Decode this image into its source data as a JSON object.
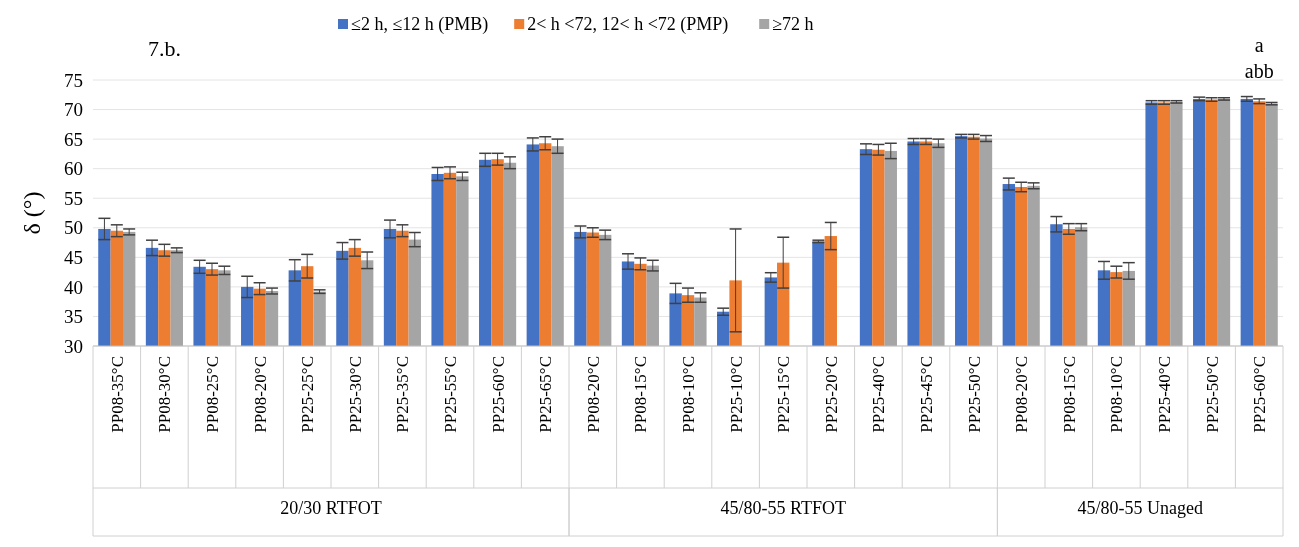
{
  "chart_data": {
    "type": "bar",
    "title": "7.b.",
    "ylabel": "δ (°)",
    "categories": [
      "PP08-35°C",
      "PP08-30°C",
      "PP08-25°C",
      "PP08-20°C",
      "PP25-25°C",
      "PP25-30°C",
      "PP25-35°C",
      "PP25-55°C",
      "PP25-60°C",
      "PP25-65°C",
      "PP08-20°C",
      "PP08-15°C",
      "PP08-10°C",
      "PP25-10°C",
      "PP25-15°C",
      "PP25-20°C",
      "PP25-40°C",
      "PP25-45°C",
      "PP25-50°C",
      "PP08-20°C",
      "PP08-15°C",
      "PP08-10°C",
      "PP25-40°C",
      "PP25-50°C",
      "PP25-60°C"
    ],
    "series": [
      {
        "name": "≤2 h, ≤12 h (PMB)",
        "color": "#4472c4",
        "values": [
          49.8,
          46.6,
          43.4,
          40,
          42.8,
          46.1,
          49.8,
          59.1,
          61.5,
          64.1,
          49.3,
          44.3,
          38.9,
          35.8,
          41.6,
          47.7,
          63.3,
          64.6,
          65.5,
          57.4,
          50.6,
          42.8,
          71.2,
          71.8,
          71.8
        ],
        "errors": [
          1.8,
          1.3,
          1.1,
          1.8,
          1.8,
          1.4,
          1.5,
          1.1,
          1.1,
          1.1,
          1,
          1.3,
          1.7,
          0.6,
          0.8,
          0.2,
          0.9,
          0.5,
          0.3,
          1,
          1.3,
          1.5,
          0.3,
          0.3,
          0.4
        ]
      },
      {
        "name": "2< h <72, 12< h <72 (PMP)",
        "color": "#ed7d31",
        "values": [
          49.5,
          46.2,
          43,
          39.7,
          43.5,
          46.6,
          49.5,
          59.3,
          61.6,
          64.3,
          49.2,
          43.9,
          38.6,
          41.1,
          44.1,
          48.6,
          63.2,
          64.6,
          65.4,
          56.9,
          49.8,
          42.5,
          71.2,
          71.7,
          71.4
        ],
        "errors": [
          1,
          1,
          1,
          1,
          2,
          1.4,
          1,
          1,
          1,
          1.1,
          0.8,
          1,
          1.2,
          8.7,
          4.3,
          2.3,
          0.9,
          0.5,
          0.4,
          0.8,
          0.9,
          1,
          0.3,
          0.3,
          0.4
        ]
      },
      {
        "name": "≥72 h",
        "color": "#a5a5a5",
        "values": [
          49.3,
          46.2,
          42.8,
          39.3,
          39.2,
          44.5,
          48,
          58.7,
          61,
          63.8,
          48.8,
          43.6,
          38.2,
          null,
          null,
          null,
          63,
          64.3,
          65.1,
          57.1,
          50.1,
          42.7,
          71.3,
          71.8,
          71
        ],
        "errors": [
          0.5,
          0.4,
          0.7,
          0.5,
          0.3,
          1.4,
          1.2,
          0.7,
          1,
          1.2,
          0.8,
          0.9,
          0.8,
          null,
          null,
          null,
          1.3,
          0.7,
          0.5,
          0.5,
          0.6,
          1.4,
          0.2,
          0.2,
          0.2
        ]
      }
    ],
    "ylim": [
      30,
      75
    ],
    "yticks": [
      30,
      35,
      40,
      45,
      50,
      55,
      60,
      65,
      70,
      75
    ],
    "grid": "y",
    "legend": "top",
    "annotations": [
      "20/30 RTFOT",
      "45/80-55 RTFOT",
      "45/80-55 Unaged",
      "a",
      "abb"
    ]
  }
}
